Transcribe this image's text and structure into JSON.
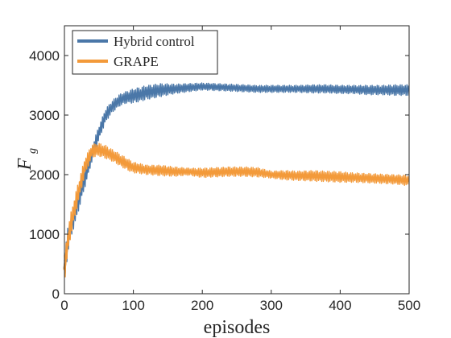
{
  "chart_data": {
    "type": "line",
    "title": "",
    "xlabel": "episodes",
    "ylabel_main": "F",
    "ylabel_sub": "g",
    "xlim": [
      0,
      500
    ],
    "ylim": [
      0,
      4500
    ],
    "xticks": [
      0,
      100,
      200,
      300,
      400,
      500
    ],
    "yticks": [
      0,
      1000,
      2000,
      3000,
      4000
    ],
    "grid": false,
    "legend_position": "top-left",
    "series": [
      {
        "name": "Hybrid control",
        "color": "#4a77a8",
        "x": [
          0,
          5,
          10,
          20,
          30,
          40,
          50,
          60,
          70,
          80,
          90,
          100,
          120,
          140,
          160,
          180,
          200,
          220,
          240,
          260,
          280,
          300,
          320,
          340,
          360,
          380,
          400,
          420,
          440,
          460,
          480,
          500
        ],
        "y": [
          420,
          900,
          1150,
          1550,
          1950,
          2350,
          2700,
          3000,
          3150,
          3250,
          3300,
          3320,
          3380,
          3420,
          3440,
          3460,
          3480,
          3470,
          3460,
          3450,
          3440,
          3440,
          3440,
          3440,
          3440,
          3440,
          3430,
          3430,
          3420,
          3420,
          3420,
          3420
        ],
        "spread": [
          250,
          220,
          200,
          180,
          150,
          130,
          120,
          110,
          100,
          100,
          100,
          120,
          120,
          110,
          80,
          70,
          60,
          60,
          60,
          60,
          60,
          60,
          60,
          60,
          70,
          70,
          70,
          70,
          80,
          80,
          90,
          90
        ]
      },
      {
        "name": "GRAPE",
        "color": "#f39a3a",
        "x": [
          0,
          5,
          10,
          20,
          30,
          40,
          50,
          60,
          70,
          80,
          90,
          100,
          120,
          140,
          160,
          180,
          200,
          220,
          240,
          260,
          280,
          300,
          320,
          340,
          360,
          380,
          400,
          420,
          440,
          460,
          480,
          500
        ],
        "y": [
          400,
          900,
          1200,
          1700,
          2150,
          2400,
          2420,
          2380,
          2320,
          2250,
          2180,
          2120,
          2080,
          2070,
          2050,
          2050,
          2030,
          2040,
          2050,
          2050,
          2040,
          2000,
          1990,
          1980,
          1980,
          1970,
          1960,
          1950,
          1940,
          1930,
          1920,
          1900
        ],
        "spread": [
          250,
          200,
          200,
          170,
          140,
          110,
          110,
          110,
          100,
          100,
          100,
          90,
          80,
          90,
          80,
          60,
          80,
          80,
          80,
          80,
          80,
          60,
          80,
          80,
          90,
          90,
          90,
          80,
          80,
          80,
          80,
          90
        ]
      }
    ]
  }
}
